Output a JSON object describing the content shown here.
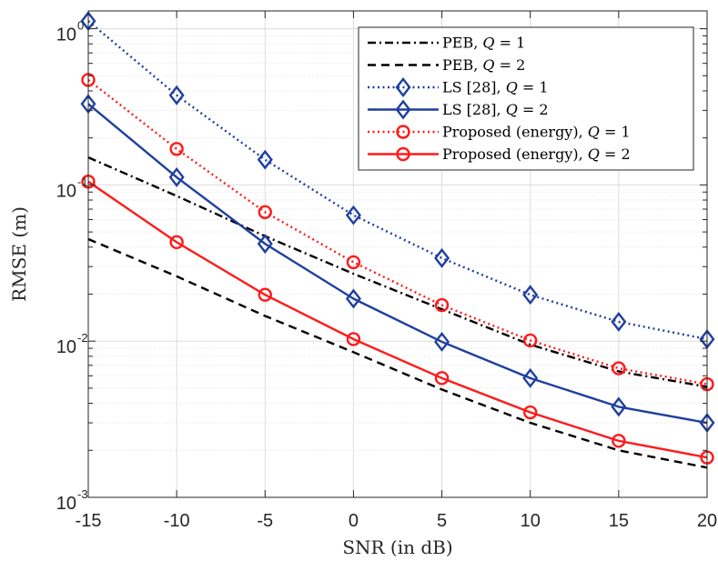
{
  "chart_data": {
    "type": "line",
    "title": "",
    "xlabel": "SNR (in dB)",
    "ylabel": "RMSE (m)",
    "yscale": "log",
    "xlim": [
      -15,
      20
    ],
    "ylim": [
      0.001,
      1.3
    ],
    "x": [
      -15,
      -10,
      -5,
      0,
      5,
      10,
      15,
      20
    ],
    "xticks": [
      -15,
      -10,
      -5,
      0,
      5,
      10,
      15,
      20
    ],
    "xtick_labels": [
      "-15",
      "-10",
      "-5",
      "0",
      "5",
      "10",
      "15",
      "20"
    ],
    "yticks": [
      {
        "value": 1,
        "base": "10",
        "exp": "0"
      },
      {
        "value": 0.1,
        "base": "10",
        "exp": "-1"
      },
      {
        "value": 0.01,
        "base": "10",
        "exp": "-2"
      },
      {
        "value": 0.001,
        "base": "10",
        "exp": "-3"
      }
    ],
    "grid": true,
    "legend_position": "top-right",
    "series": [
      {
        "name_prefix": "PEB, ",
        "q_var": "Q",
        "q_eq": " = 1",
        "color": "#000000",
        "style": "dashdot",
        "marker": "none",
        "values": [
          0.15,
          0.085,
          0.047,
          0.027,
          0.016,
          0.0095,
          0.0064,
          0.0051
        ]
      },
      {
        "name_prefix": "PEB, ",
        "q_var": "Q",
        "q_eq": " = 2",
        "color": "#000000",
        "style": "dashed",
        "marker": "none",
        "values": [
          0.045,
          0.026,
          0.0145,
          0.0085,
          0.0049,
          0.003,
          0.002,
          0.00155
        ]
      },
      {
        "name_prefix": "LS [28], ",
        "q_var": "Q",
        "q_eq": " = 1",
        "color": "#1f3f9e",
        "style": "dotted",
        "marker": "diamond",
        "values": [
          1.12,
          0.375,
          0.145,
          0.064,
          0.034,
          0.0198,
          0.0133,
          0.0103
        ]
      },
      {
        "name_prefix": "LS [28], ",
        "q_var": "Q",
        "q_eq": " = 2",
        "color": "#1f3f9e",
        "style": "solid",
        "marker": "diamond",
        "values": [
          0.33,
          0.112,
          0.042,
          0.0187,
          0.0099,
          0.0058,
          0.0038,
          0.003
        ]
      },
      {
        "name_prefix": "Proposed (energy), ",
        "q_var": "Q",
        "q_eq": " = 1",
        "color": "#ff1a1a",
        "style": "dotted",
        "marker": "circle",
        "values": [
          0.47,
          0.17,
          0.067,
          0.032,
          0.017,
          0.0101,
          0.0067,
          0.0053
        ]
      },
      {
        "name_prefix": "Proposed (energy), ",
        "q_var": "Q",
        "q_eq": " = 2",
        "color": "#ff1a1a",
        "style": "solid",
        "marker": "circle",
        "values": [
          0.105,
          0.043,
          0.0198,
          0.0103,
          0.0058,
          0.0035,
          0.0023,
          0.0018
        ]
      }
    ]
  }
}
